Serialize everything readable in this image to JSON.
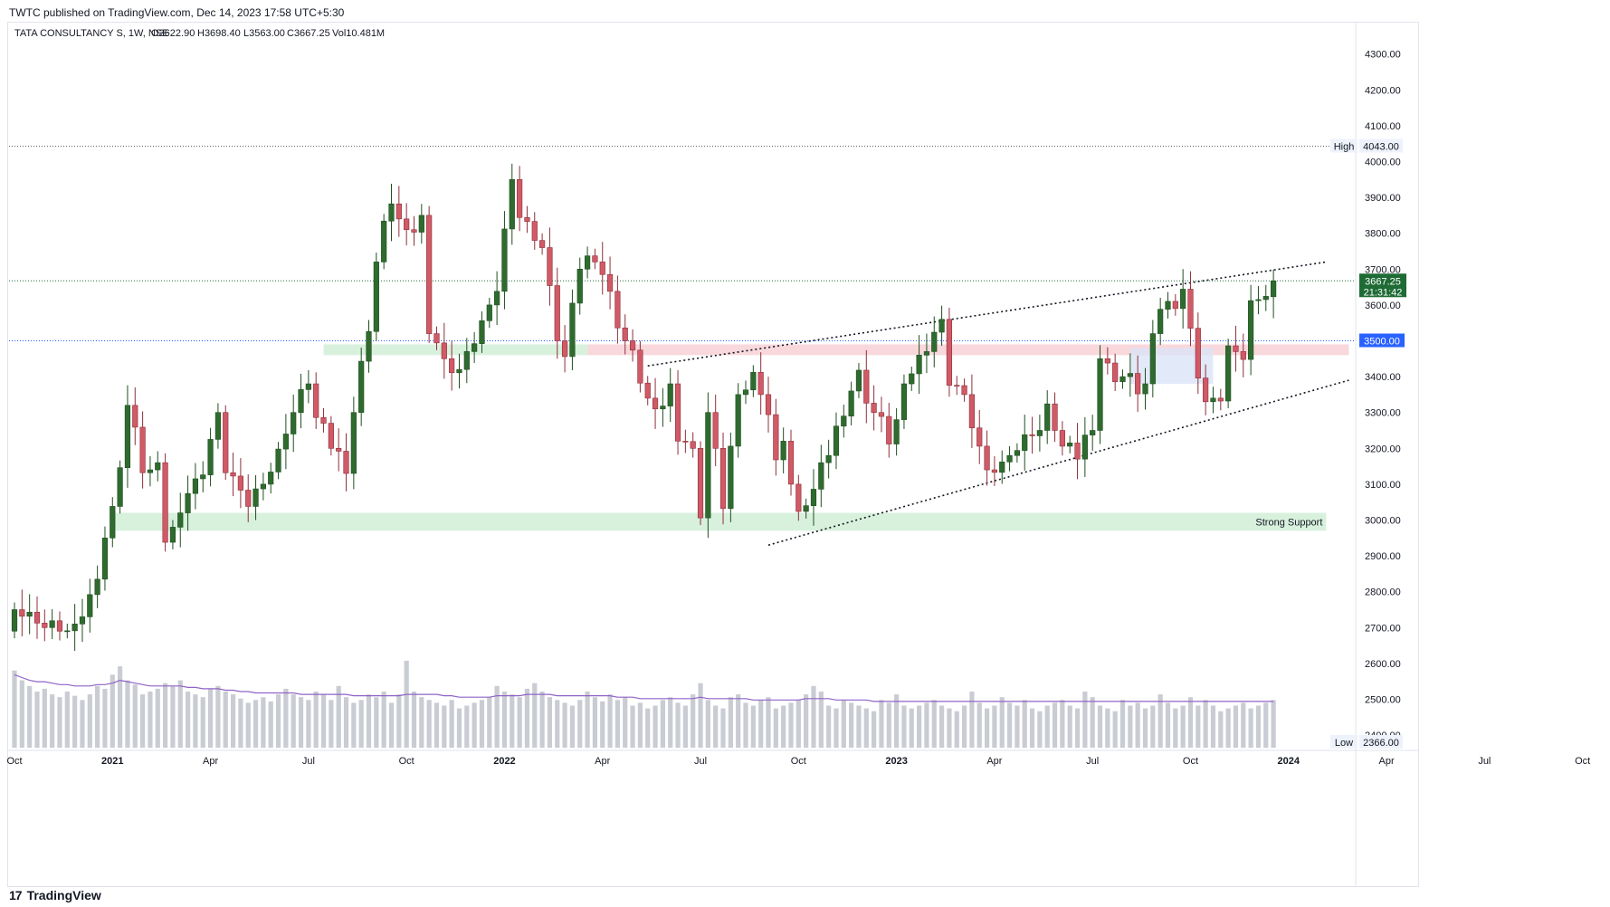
{
  "header": {
    "published": "TWTC published on TradingView.com, Dec 14, 2023 17:58 UTC+5:30"
  },
  "legend": {
    "symbol": "TATA CONSULTANCY S, 1W, NSE",
    "open": "O3622.90",
    "high": "H3698.40",
    "low": "L3563.00",
    "close": "C3667.25",
    "volume": "Vol10.481M"
  },
  "footer": {
    "brand": "TradingView"
  },
  "colors": {
    "up": "#2f6b2f",
    "down": "#d05a66",
    "volume": "#c9ccd3",
    "ma": "#8f63c7",
    "support_zone": "#d4efd9",
    "resistance_zone": "#f8d4d8",
    "price_badge": "#1e6b35",
    "level_badge": "#2962ff"
  },
  "chart_data": {
    "type": "candlestick",
    "symbol": "TATA CONSULTANCY S",
    "interval": "1W",
    "exchange": "NSE",
    "y_range": [
      2366,
      4330
    ],
    "y_ticks": [
      2400,
      2500,
      2600,
      2700,
      2800,
      2900,
      3000,
      3100,
      3200,
      3300,
      3400,
      3500,
      3600,
      3700,
      3800,
      3900,
      4000,
      4100,
      4200,
      4300
    ],
    "x_tick_labels": [
      "Oct",
      "2021",
      "Apr",
      "Jul",
      "Oct",
      "2022",
      "Apr",
      "Jul",
      "Oct",
      "2023",
      "Apr",
      "Jul",
      "Oct",
      "2024",
      "Apr",
      "Jul",
      "Oct"
    ],
    "x_tick_weeks": [
      0,
      13,
      26,
      39,
      52,
      65,
      78,
      91,
      104,
      117,
      130,
      143,
      156,
      169,
      182,
      195,
      208
    ],
    "last_candle_week": 167,
    "ohlc_anchors_close": [
      [
        0,
        2750
      ],
      [
        4,
        2700
      ],
      [
        8,
        2680
      ],
      [
        10,
        2780
      ],
      [
        12,
        2950
      ],
      [
        13,
        3020
      ],
      [
        15,
        3320
      ],
      [
        17,
        3150
      ],
      [
        19,
        3130
      ],
      [
        20,
        2950
      ],
      [
        21,
        2980
      ],
      [
        22,
        3050
      ],
      [
        23,
        3080
      ],
      [
        25,
        3150
      ],
      [
        27,
        3300
      ],
      [
        28,
        3150
      ],
      [
        31,
        3050
      ],
      [
        33,
        3100
      ],
      [
        35,
        3180
      ],
      [
        37,
        3300
      ],
      [
        39,
        3380
      ],
      [
        40,
        3280
      ],
      [
        42,
        3200
      ],
      [
        44,
        3160
      ],
      [
        45,
        3300
      ],
      [
        47,
        3550
      ],
      [
        48,
        3720
      ],
      [
        50,
        3900
      ],
      [
        52,
        3780
      ],
      [
        54,
        3850
      ],
      [
        55,
        3550
      ],
      [
        56,
        3500
      ],
      [
        57,
        3450
      ],
      [
        59,
        3420
      ],
      [
        60,
        3470
      ],
      [
        62,
        3550
      ],
      [
        64,
        3650
      ],
      [
        66,
        3950
      ],
      [
        67,
        3850
      ],
      [
        69,
        3780
      ],
      [
        70,
        3760
      ],
      [
        72,
        3500
      ],
      [
        73,
        3450
      ],
      [
        75,
        3700
      ],
      [
        77,
        3750
      ],
      [
        79,
        3620
      ],
      [
        81,
        3500
      ],
      [
        83,
        3400
      ],
      [
        85,
        3280
      ],
      [
        87,
        3380
      ],
      [
        88,
        3250
      ],
      [
        90,
        3200
      ],
      [
        91,
        3030
      ],
      [
        92,
        3300
      ],
      [
        93,
        3200
      ],
      [
        94,
        3050
      ],
      [
        96,
        3350
      ],
      [
        98,
        3400
      ],
      [
        100,
        3300
      ],
      [
        101,
        3150
      ],
      [
        102,
        3220
      ],
      [
        103,
        3100
      ],
      [
        104,
        3000
      ],
      [
        106,
        3080
      ],
      [
        108,
        3180
      ],
      [
        110,
        3320
      ],
      [
        112,
        3400
      ],
      [
        114,
        3300
      ],
      [
        116,
        3230
      ],
      [
        117,
        3280
      ],
      [
        119,
        3420
      ],
      [
        121,
        3500
      ],
      [
        123,
        3560
      ],
      [
        124,
        3400
      ],
      [
        126,
        3350
      ],
      [
        128,
        3200
      ],
      [
        129,
        3140
      ],
      [
        131,
        3150
      ],
      [
        132,
        3180
      ],
      [
        134,
        3220
      ],
      [
        136,
        3250
      ],
      [
        137,
        3300
      ],
      [
        139,
        3200
      ],
      [
        141,
        3170
      ],
      [
        143,
        3280
      ],
      [
        144,
        3450
      ],
      [
        145,
        3420
      ],
      [
        147,
        3400
      ],
      [
        149,
        3370
      ],
      [
        150,
        3380
      ],
      [
        152,
        3600
      ],
      [
        154,
        3620
      ],
      [
        155,
        3650
      ],
      [
        157,
        3420
      ],
      [
        158,
        3330
      ],
      [
        160,
        3350
      ],
      [
        161,
        3480
      ],
      [
        163,
        3460
      ],
      [
        164,
        3600
      ],
      [
        166,
        3630
      ],
      [
        167,
        3667
      ]
    ],
    "last_candle": {
      "open": 3622.9,
      "high": 3698.4,
      "low": 3563.0,
      "close": 3667.25
    },
    "all_time_high": 4043.0,
    "low": 2366.0,
    "labels": {
      "high": "High",
      "high_value": "4043.00",
      "low": "Low",
      "low_value": "2366.00",
      "last_price": "3667.25",
      "countdown": "21:31:42",
      "level": "3500.00",
      "support": "Strong Support"
    },
    "zones": [
      {
        "name": "Strong Support",
        "from": 2970,
        "to": 3020,
        "start_week": 13,
        "end_week": 174
      },
      {
        "name": "support-resistance",
        "from": 3460,
        "to": 3490,
        "start_week": 41,
        "end_week": 76
      },
      {
        "name": "resistance",
        "from": 3460,
        "to": 3490,
        "start_week": 76,
        "end_week": 177
      },
      {
        "name": "consolidation",
        "from": 3380,
        "to": 3480,
        "start_week": 148,
        "end_week": 159
      }
    ],
    "trendlines": [
      {
        "name": "channel-top",
        "from": [
          84,
          3430
        ],
        "to": [
          174,
          3720
        ]
      },
      {
        "name": "channel-bottom",
        "from": [
          100,
          2930
        ],
        "to": [
          177,
          3390
        ]
      }
    ],
    "hlines": [
      4043,
      3667.25,
      3500
    ],
    "volume_series": [
      55,
      48,
      44,
      40,
      42,
      38,
      36,
      40,
      37,
      34,
      38,
      44,
      42,
      52,
      58,
      48,
      45,
      38,
      40,
      42,
      46,
      44,
      48,
      40,
      38,
      36,
      42,
      44,
      40,
      38,
      35,
      32,
      34,
      36,
      33,
      38,
      42,
      38,
      36,
      34,
      40,
      38,
      34,
      44,
      36,
      32,
      34,
      38,
      36,
      40,
      32,
      38,
      62,
      40,
      36,
      34,
      32,
      30,
      34,
      28,
      30,
      32,
      34,
      36,
      44,
      40,
      38,
      36,
      42,
      46,
      40,
      36,
      34,
      32,
      30,
      34,
      40,
      36,
      33,
      38,
      34,
      36,
      30,
      32,
      28,
      30,
      34,
      36,
      32,
      30,
      38,
      46,
      34,
      30,
      28,
      36,
      38,
      32,
      30,
      34,
      36,
      28,
      30,
      32,
      34,
      38,
      44,
      40,
      30,
      28,
      34,
      32,
      30,
      28,
      26,
      34,
      32,
      38,
      30,
      28,
      30,
      32,
      34,
      30,
      28,
      26,
      30,
      40,
      32,
      28,
      30,
      36,
      32,
      30,
      34,
      28,
      26,
      30,
      32,
      34,
      30,
      28,
      40,
      36,
      30,
      28,
      26,
      34,
      30,
      32,
      28,
      30,
      38,
      32,
      28,
      30,
      36,
      30,
      34,
      30,
      26,
      28,
      30,
      32,
      28,
      30,
      32,
      34
    ],
    "volume_ma": [
      52,
      50,
      48,
      47,
      47,
      46,
      45,
      45,
      44,
      44,
      44,
      45,
      45,
      46,
      48,
      47,
      46,
      45,
      44,
      44,
      44,
      44,
      44,
      43,
      43,
      42,
      42,
      42,
      41,
      41,
      40,
      40,
      39,
      39,
      39,
      39,
      39,
      39,
      38,
      38,
      38,
      38,
      38,
      38,
      38,
      37,
      37,
      37,
      37,
      37,
      37,
      37,
      38,
      38,
      38,
      38,
      38,
      37,
      37,
      36,
      36,
      36,
      36,
      36,
      37,
      37,
      37,
      37,
      38,
      38,
      38,
      38,
      37,
      37,
      37,
      37,
      37,
      37,
      37,
      37,
      36,
      36,
      36,
      35,
      35,
      35,
      35,
      35,
      35,
      35,
      35,
      36,
      35,
      35,
      35,
      35,
      35,
      35,
      34,
      34,
      34,
      34,
      34,
      34,
      34,
      35,
      35,
      35,
      35,
      34,
      34,
      34,
      34,
      34,
      33,
      33,
      33,
      33,
      33,
      33,
      33,
      33,
      33,
      33,
      33,
      33,
      33,
      33,
      33,
      33,
      33,
      33,
      33,
      33,
      33,
      33,
      33,
      33,
      33,
      33,
      33,
      33,
      33,
      33,
      33,
      33,
      33,
      33,
      33,
      33,
      33,
      33,
      33,
      33,
      33,
      33,
      33,
      33,
      33,
      33,
      33,
      33,
      33,
      33,
      33,
      33,
      33,
      33
    ]
  }
}
